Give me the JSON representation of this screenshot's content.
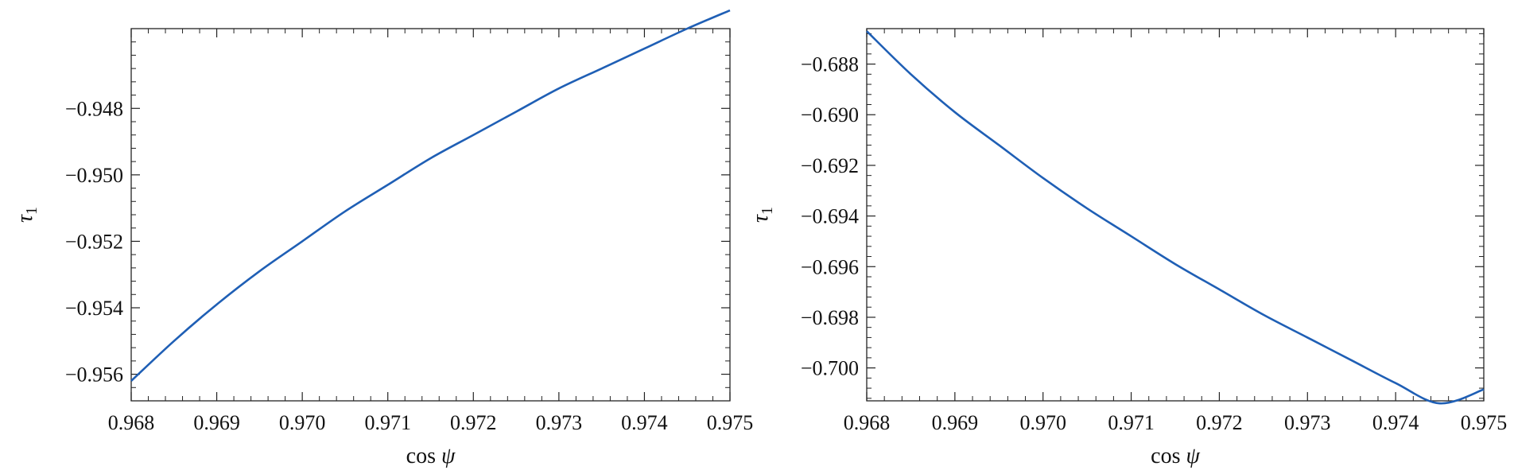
{
  "chart_data": [
    {
      "type": "line",
      "xlabel": "cos ψ",
      "ylabel": "τ1",
      "xlim": [
        0.968,
        0.975
      ],
      "ylim": [
        -0.9568,
        -0.9456
      ],
      "xticks": [
        0.968,
        0.969,
        0.97,
        0.971,
        0.972,
        0.973,
        0.974,
        0.975
      ],
      "xtick_labels": [
        "0.968",
        "0.969",
        "0.970",
        "0.971",
        "0.972",
        "0.973",
        "0.974",
        "0.975"
      ],
      "yticks": [
        -0.948,
        -0.95,
        -0.952,
        -0.954,
        -0.956
      ],
      "ytick_labels": [
        "−0.948",
        "−0.950",
        "−0.952",
        "−0.954",
        "−0.956"
      ],
      "grid": false,
      "series": [
        {
          "color": "#1f5fb5",
          "x": [
            0.968,
            0.9685,
            0.969,
            0.9695,
            0.97,
            0.9705,
            0.971,
            0.9715,
            0.972,
            0.9725,
            0.973,
            0.9735,
            0.974,
            0.9745,
            0.975
          ],
          "y": [
            -0.9562,
            -0.955,
            -0.9539,
            -0.9529,
            -0.952,
            -0.9511,
            -0.9503,
            -0.9495,
            -0.9488,
            -0.9481,
            -0.9474,
            -0.9468,
            -0.9462,
            -0.9456,
            -0.94505
          ]
        }
      ]
    },
    {
      "type": "line",
      "xlabel": "cos ψ",
      "ylabel": "τ1",
      "xlim": [
        0.968,
        0.975
      ],
      "ylim": [
        -0.7013,
        -0.6866
      ],
      "xticks": [
        0.968,
        0.969,
        0.97,
        0.971,
        0.972,
        0.973,
        0.974,
        0.975
      ],
      "xtick_labels": [
        "0.968",
        "0.969",
        "0.970",
        "0.971",
        "0.972",
        "0.973",
        "0.974",
        "0.975"
      ],
      "yticks": [
        -0.688,
        -0.69,
        -0.692,
        -0.694,
        -0.696,
        -0.698,
        -0.7
      ],
      "ytick_labels": [
        "−0.688",
        "−0.690",
        "−0.692",
        "−0.694",
        "−0.696",
        "−0.698",
        "−0.700"
      ],
      "grid": false,
      "series": [
        {
          "color": "#1f5fb5",
          "x": [
            0.968,
            0.9685,
            0.969,
            0.9695,
            0.97,
            0.9705,
            0.971,
            0.9715,
            0.972,
            0.9725,
            0.973,
            0.9735,
            0.974,
            0.9745,
            0.975
          ],
          "y": [
            -0.6867,
            -0.6884,
            -0.6899,
            -0.6912,
            -0.6925,
            -0.6937,
            -0.6948,
            -0.6959,
            -0.6969,
            -0.6979,
            -0.6988,
            -0.6997,
            -0.7006,
            -0.7014,
            -0.70085
          ]
        }
      ]
    }
  ]
}
